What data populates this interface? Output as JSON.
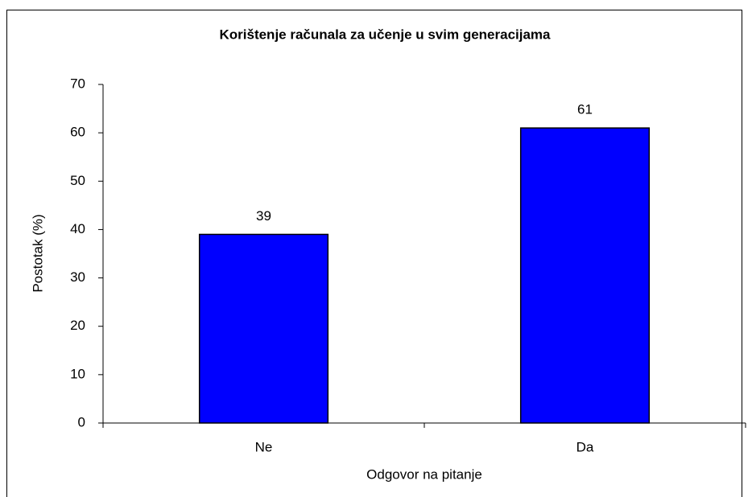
{
  "chart_data": {
    "type": "bar",
    "title": "Korištenje računala za učenje u svim generacijama",
    "categories": [
      "Ne",
      "Da"
    ],
    "values": [
      39,
      61
    ],
    "color": "#0000ff",
    "xlabel": "Odgovor na pitanje",
    "ylabel": "Postotak (%)",
    "ylim": [
      0,
      70
    ],
    "yticks": [
      0,
      10,
      20,
      30,
      40,
      50,
      60,
      70
    ],
    "grid": false,
    "data_labels": true
  }
}
